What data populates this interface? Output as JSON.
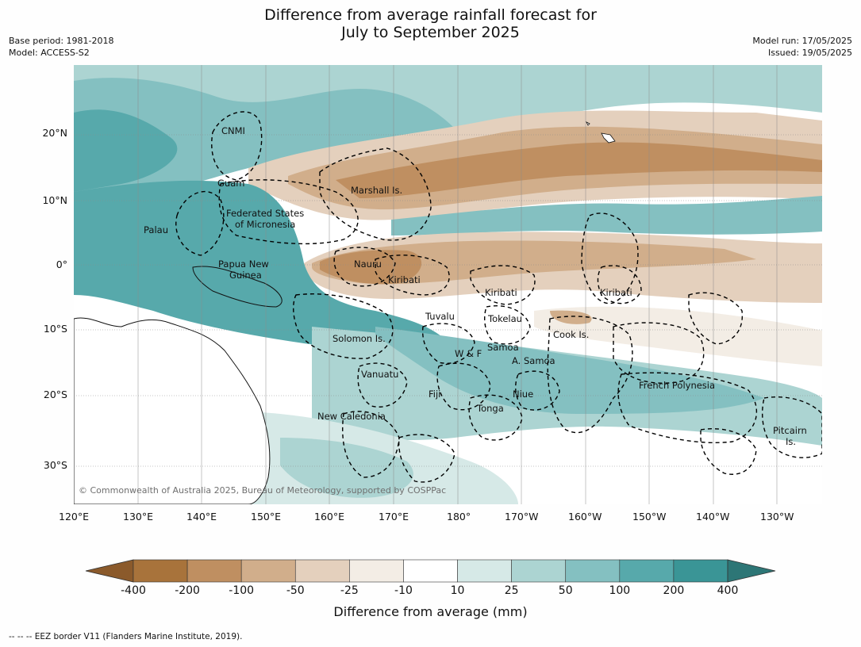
{
  "title": {
    "line1": "Difference from average rainfall forecast for",
    "line2": "July to September 2025"
  },
  "meta": {
    "base_period": "Base period: 1981-2018",
    "model": "Model: ACCESS-S2",
    "model_run": "Model run: 17/05/2025",
    "issued": "Issued: 19/05/2025"
  },
  "map": {
    "lon_ticks": [
      "120°E",
      "130°E",
      "140°E",
      "150°E",
      "160°E",
      "170°E",
      "180°",
      "170°W",
      "160°W",
      "150°W",
      "140°W",
      "130°W"
    ],
    "lat_ticks": [
      "20°N",
      "10°N",
      "0°",
      "10°S",
      "20°S",
      "30°S"
    ],
    "places": [
      "CNMI",
      "Guam",
      "Marshall Is.",
      "Federated States",
      "of Micronesia",
      "Palau",
      "Papua New",
      "Guinea",
      "Nauru",
      "Kiribati",
      "Kiribati",
      "Kiribati",
      "Tuvalu",
      "Tokelau",
      "Cook Is.",
      "Solomon Is.",
      "W & F",
      "Samoa",
      "A. Samoa",
      "Vanuatu",
      "Fiji",
      "Niue",
      "Tonga",
      "French Polynesia",
      "New Caledonia",
      "Pitcairn",
      "Is."
    ],
    "copyright": "© Commonwealth of Australia 2025, Bureau of Meteorology, supported by COSPPac"
  },
  "colorbar": {
    "labels": [
      "-400",
      "-200",
      "-100",
      "-50",
      "-25",
      "-10",
      "10",
      "25",
      "50",
      "100",
      "200",
      "400"
    ],
    "colors": [
      "#8b5a2b",
      "#a8733b",
      "#bf8f61",
      "#d1ae8b",
      "#e4d0bd",
      "#f3ede5",
      "#ffffff",
      "#d6e9e7",
      "#acd4d2",
      "#84c0c1",
      "#57a9ab",
      "#3a9596",
      "#2d7676"
    ],
    "title": "Difference from average (mm)"
  },
  "footnote": "--  --  -- EEZ border V11 (Flanders Marine Institute, 2019)."
}
